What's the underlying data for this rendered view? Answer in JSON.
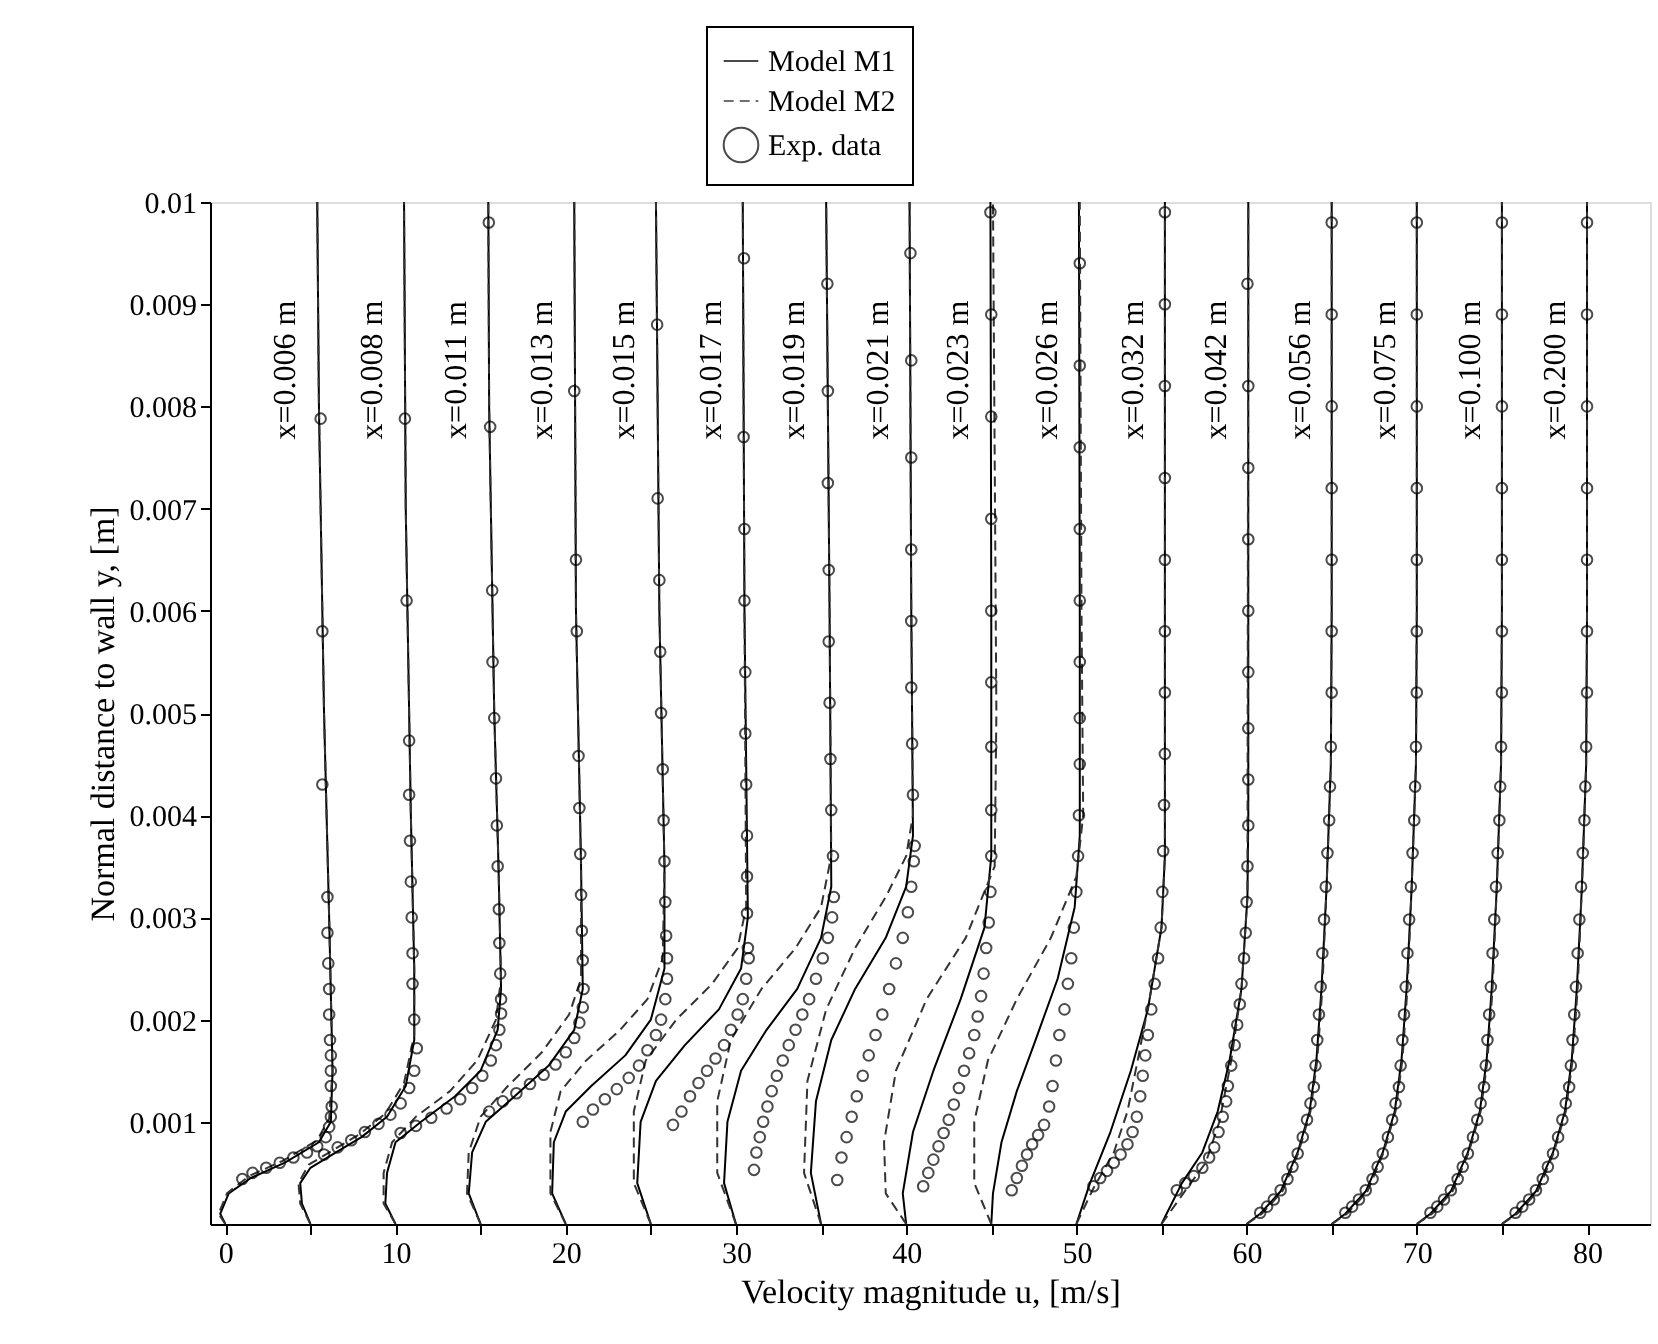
{
  "chart_data": {
    "type": "line",
    "xlabel": "Velocity magnitude u, [m/s]",
    "ylabel": "Normal distance to wall y, [m]",
    "xlim": [
      -0.9,
      83.7
    ],
    "ylim": [
      0,
      0.01
    ],
    "xticks": [
      0,
      {
        "value": 5,
        "label": null
      },
      10,
      {
        "value": 15,
        "label": null
      },
      20,
      {
        "value": 25,
        "label": null
      },
      30,
      {
        "value": 35,
        "label": null
      },
      40,
      {
        "value": 45,
        "label": null
      },
      50,
      {
        "value": 55,
        "label": null
      },
      60,
      {
        "value": 65,
        "label": null
      },
      70,
      {
        "value": 75,
        "label": null
      },
      80
    ],
    "yticks": [
      0.001,
      0.002,
      0.003,
      0.004,
      0.005,
      0.006,
      0.007,
      0.008,
      0.009,
      0.01
    ],
    "grid": false,
    "legend": "top",
    "series": [
      {
        "name": "Model M1",
        "type": "line",
        "line_style": "solid",
        "color": "#000000",
        "x": [
          0,
          -0.3,
          0.2,
          1.5,
          3.5,
          5.5,
          6.2,
          6.3,
          6.1,
          5.8,
          5.5,
          5.4,
          null,
          5,
          4.5,
          4.4,
          5,
          6.5,
          8,
          9.5,
          10.6,
          11.1,
          11.1,
          10.9,
          10.6,
          10.5,
          null,
          10,
          9.4,
          9.5,
          10,
          11.5,
          13.5,
          15,
          16,
          16.2,
          16.05,
          15.8,
          15.5,
          15.45,
          null,
          15,
          14.3,
          14.5,
          15.3,
          17,
          19,
          20.5,
          21,
          20.9,
          20.6,
          20.5,
          null,
          20,
          19.2,
          19.3,
          20,
          21.5,
          23.5,
          25,
          25.8,
          25.8,
          25.5,
          25.3,
          null,
          25,
          24.2,
          24.4,
          25.3,
          27,
          29,
          30.3,
          30.7,
          30.5,
          30.4,
          null,
          30,
          29.3,
          29.5,
          30.3,
          31.8,
          33.6,
          35,
          35.6,
          35.5,
          35.3,
          null,
          35,
          34.4,
          34.7,
          35.6,
          37,
          38.8,
          40,
          40.4,
          40.3,
          40.2,
          null,
          40,
          39.8,
          40.4,
          41.6,
          43.2,
          44.6,
          45,
          45,
          44.95,
          null,
          45,
          45.1,
          45.6,
          46.5,
          47.6,
          48.9,
          49.9,
          50.2,
          50.2,
          50.15,
          null,
          50,
          50.8,
          52,
          53.2,
          54.2,
          55,
          55.2,
          55.2,
          55.2,
          null,
          55,
          56.2,
          57.4,
          58.3,
          59,
          59.7,
          60.05,
          60.1,
          60.1,
          null,
          60,
          60.8,
          62,
          63,
          63.7,
          64.1,
          64.4,
          64.7,
          64.95,
          65,
          65,
          null,
          65,
          65.8,
          67,
          68,
          68.7,
          69.1,
          69.4,
          69.7,
          69.95,
          70,
          70,
          null,
          70,
          70.8,
          72,
          73,
          73.7,
          74.1,
          74.4,
          74.7,
          74.95,
          75,
          75,
          null,
          75,
          75.8,
          77,
          78,
          78.7,
          79.1,
          79.4,
          79.7,
          79.95,
          80,
          80
        ],
        "values": [
          0,
          0.0001,
          0.0003,
          0.00045,
          0.0006,
          0.0008,
          0.001,
          0.0015,
          0.003,
          0.005,
          0.008,
          0.01,
          null,
          0,
          0.0002,
          0.0004,
          0.00055,
          0.0007,
          0.00085,
          0.00105,
          0.00135,
          0.0018,
          0.0025,
          0.004,
          0.007,
          0.01,
          null,
          0,
          0.0002,
          0.0005,
          0.0008,
          0.001,
          0.00125,
          0.0015,
          0.0019,
          0.0023,
          0.0035,
          0.005,
          0.008,
          0.01,
          null,
          0,
          0.0003,
          0.0007,
          0.001,
          0.00125,
          0.00155,
          0.0019,
          0.0023,
          0.0035,
          0.006,
          0.01,
          null,
          0,
          0.0003,
          0.0008,
          0.0011,
          0.00135,
          0.00165,
          0.002,
          0.0025,
          0.0035,
          0.006,
          0.01,
          null,
          0,
          0.0004,
          0.001,
          0.0014,
          0.00175,
          0.0021,
          0.0025,
          0.003,
          0.006,
          0.01,
          null,
          0,
          0.0004,
          0.001,
          0.0015,
          0.0019,
          0.0023,
          0.0028,
          0.0033,
          0.006,
          0.01,
          null,
          0,
          0.0005,
          0.0012,
          0.0018,
          0.0023,
          0.0028,
          0.0033,
          0.0038,
          0.006,
          0.01,
          null,
          0,
          0.0003,
          0.0009,
          0.0015,
          0.0022,
          0.0029,
          0.0036,
          0.006,
          0.01,
          null,
          0,
          0.0003,
          0.0008,
          0.0013,
          0.0018,
          0.0024,
          0.0031,
          0.0038,
          0.006,
          0.01,
          null,
          0,
          0.0004,
          0.0009,
          0.0015,
          0.0021,
          0.0029,
          0.0036,
          0.006,
          0.01,
          null,
          0,
          0.0004,
          0.0007,
          0.0011,
          0.0016,
          0.0023,
          0.0032,
          0.004,
          0.01,
          null,
          0,
          0.0001,
          0.00032,
          0.0007,
          0.0011,
          0.0016,
          0.0023,
          0.0033,
          0.0045,
          0.006,
          0.01,
          null,
          0,
          0.0001,
          0.00032,
          0.0007,
          0.0011,
          0.0016,
          0.0023,
          0.0033,
          0.0045,
          0.006,
          0.01,
          null,
          0,
          0.0001,
          0.00032,
          0.0007,
          0.0011,
          0.0016,
          0.0023,
          0.0033,
          0.0045,
          0.006,
          0.01,
          null,
          0,
          0.0001,
          0.00032,
          0.0007,
          0.0011,
          0.0016,
          0.0023,
          0.0033,
          0.0045,
          0.006,
          0.01
        ]
      },
      {
        "name": "Model M2",
        "type": "line",
        "line_style": "dashed",
        "color": "#333333",
        "x": [
          0,
          -0.4,
          0.1,
          1.4,
          3.4,
          5.4,
          6.1,
          6.3,
          6.1,
          5.8,
          5.5,
          5.4,
          null,
          5,
          4.4,
          4.3,
          4.9,
          6.4,
          7.9,
          9.4,
          10.5,
          11.1,
          11.1,
          10.9,
          10.6,
          10.5,
          null,
          10,
          9.3,
          9.3,
          9.8,
          11.2,
          13.2,
          14.8,
          15.9,
          16.2,
          16.05,
          15.8,
          15.5,
          15.45,
          null,
          15,
          14.2,
          14.3,
          15,
          16.6,
          18.6,
          20.2,
          20.9,
          20.9,
          20.6,
          20.5,
          null,
          20,
          19.1,
          19.1,
          19.7,
          21.2,
          23.2,
          24.8,
          25.7,
          25.8,
          25.5,
          25.3,
          null,
          25,
          24,
          24,
          24.7,
          26.5,
          28.6,
          30.1,
          30.6,
          30.5,
          30.4,
          null,
          30,
          28.9,
          28.9,
          29.7,
          31.5,
          33.5,
          35,
          35.6,
          35.5,
          35.3,
          null,
          35,
          34,
          34.2,
          35.3,
          37,
          38.8,
          40,
          40.4,
          40.3,
          40.2,
          null,
          40,
          38.8,
          38.7,
          39.4,
          41.2,
          43.5,
          45.2,
          45.3,
          45.1,
          null,
          45,
          44,
          44,
          44.8,
          46.5,
          48.5,
          50,
          50.4,
          50.3,
          50.2,
          null,
          50,
          51,
          52.2,
          53,
          53.6,
          54.3,
          55,
          55.2,
          55.2,
          null,
          55,
          56.5,
          57.6,
          58.4,
          59.1,
          59.7,
          60.05,
          60.1,
          null,
          60,
          60.9,
          62.1,
          63.05,
          63.75,
          64.15,
          64.45,
          64.7,
          64.95,
          65,
          65,
          null,
          65,
          65.9,
          67.1,
          68.05,
          68.75,
          69.15,
          69.45,
          69.7,
          69.95,
          70,
          70,
          null,
          70,
          70.9,
          72.1,
          73.05,
          73.75,
          74.15,
          74.45,
          74.7,
          74.95,
          75,
          75,
          null,
          75,
          75.9,
          77.1,
          78.05,
          78.75,
          79.15,
          79.45,
          79.7,
          79.95,
          80,
          80
        ],
        "values": [
          0,
          0.0001,
          0.0003,
          0.00047,
          0.00062,
          0.00082,
          0.00103,
          0.0015,
          0.003,
          0.005,
          0.008,
          0.01,
          null,
          0,
          0.0002,
          0.0004,
          0.00058,
          0.00073,
          0.00088,
          0.00108,
          0.00138,
          0.00185,
          0.0025,
          0.004,
          0.007,
          0.01,
          null,
          0,
          0.0002,
          0.0005,
          0.0008,
          0.00105,
          0.0013,
          0.0016,
          0.002,
          0.0024,
          0.0035,
          0.005,
          0.008,
          0.01,
          null,
          0,
          0.0003,
          0.0007,
          0.00105,
          0.00135,
          0.00168,
          0.00205,
          0.0024,
          0.0035,
          0.006,
          0.01,
          null,
          0,
          0.0003,
          0.0009,
          0.0013,
          0.0016,
          0.0019,
          0.0022,
          0.0026,
          0.0035,
          0.006,
          0.01,
          null,
          0,
          0.0004,
          0.0011,
          0.0016,
          0.002,
          0.00235,
          0.0027,
          0.0031,
          0.006,
          0.01,
          null,
          0,
          0.0005,
          0.0012,
          0.0018,
          0.0023,
          0.0027,
          0.0031,
          0.0036,
          0.006,
          0.01,
          null,
          0,
          0.0005,
          0.0014,
          0.0021,
          0.0027,
          0.0032,
          0.0036,
          0.004,
          0.006,
          0.01,
          null,
          0,
          0.0003,
          0.0008,
          0.0015,
          0.0022,
          0.0028,
          0.0035,
          0.005,
          0.01,
          null,
          0,
          0.0004,
          0.001,
          0.0016,
          0.0022,
          0.0028,
          0.0034,
          0.004,
          0.006,
          0.01,
          null,
          0,
          0.00035,
          0.0007,
          0.0011,
          0.0016,
          0.0022,
          0.0029,
          0.0036,
          0.01,
          null,
          0,
          0.00035,
          0.0006,
          0.001,
          0.0016,
          0.0023,
          0.0032,
          0.01,
          null,
          0,
          0.0001,
          0.00032,
          0.0007,
          0.0011,
          0.0016,
          0.0023,
          0.0033,
          0.0045,
          0.006,
          0.01,
          null,
          0,
          0.0001,
          0.00032,
          0.0007,
          0.0011,
          0.0016,
          0.0023,
          0.0033,
          0.0045,
          0.006,
          0.01,
          null,
          0,
          0.0001,
          0.00032,
          0.0007,
          0.0011,
          0.0016,
          0.0023,
          0.0033,
          0.0045,
          0.006,
          0.01,
          null,
          0,
          0.0001,
          0.00032,
          0.0007,
          0.0011,
          0.0016,
          0.0023,
          0.0033,
          0.0045,
          0.006,
          0.01
        ]
      },
      {
        "name": "Exp. data",
        "type": "scatter",
        "marker": "circle",
        "color": "#000000",
        "x": [
          1.0,
          1.6,
          2.4,
          3.2,
          4.0,
          4.8,
          5.4,
          5.9,
          6.1,
          6.2,
          6.25,
          6.2,
          6.2,
          6.2,
          6.15,
          6.1,
          6.1,
          6.05,
          6.0,
          6.0,
          5.7,
          5.7,
          5.6,
          5.8,
          6.6,
          7.4,
          8.2,
          9.0,
          9.7,
          10.3,
          10.8,
          11.1,
          11.25,
          11.1,
          11.0,
          11.0,
          10.95,
          10.9,
          10.85,
          10.8,
          10.8,
          10.65,
          10.55,
          10.3,
          11.2,
          12.1,
          13.0,
          13.8,
          14.5,
          15.1,
          15.6,
          15.9,
          16.1,
          16.2,
          16.2,
          16.15,
          16.1,
          16.07,
          16.0,
          15.95,
          15.9,
          15.8,
          15.7,
          15.68,
          15.56,
          15.48,
          15.5,
          16.3,
          17.1,
          17.9,
          18.7,
          19.4,
          20.0,
          20.5,
          20.8,
          21.0,
          21.05,
          21.0,
          20.95,
          20.9,
          20.85,
          20.8,
          20.75,
          20.65,
          20.6,
          20.5,
          21.0,
          21.6,
          22.3,
          23.0,
          23.7,
          24.3,
          24.8,
          25.3,
          25.6,
          25.85,
          25.95,
          25.95,
          25.9,
          25.85,
          25.8,
          25.75,
          25.7,
          25.6,
          25.55,
          25.5,
          25.4,
          25.37,
          26.3,
          26.8,
          27.3,
          27.8,
          28.3,
          28.8,
          29.3,
          29.7,
          30.1,
          30.4,
          30.6,
          30.75,
          30.7,
          30.65,
          30.65,
          30.65,
          30.6,
          30.55,
          30.55,
          30.5,
          30.5,
          30.45,
          30.47,
          31.06,
          31.2,
          31.4,
          31.6,
          31.85,
          32.1,
          32.4,
          32.75,
          33.1,
          33.5,
          33.9,
          34.3,
          34.7,
          35.1,
          35.4,
          35.65,
          35.75,
          35.7,
          35.6,
          35.55,
          35.5,
          35.45,
          35.45,
          35.4,
          35.4,
          35.37,
          35.95,
          36.2,
          36.5,
          36.8,
          37.1,
          37.45,
          37.8,
          38.2,
          38.6,
          39.0,
          39.4,
          39.8,
          40.1,
          40.3,
          40.45,
          40.5,
          40.4,
          40.35,
          40.3,
          40.3,
          40.3,
          40.3,
          40.3,
          40.25,
          41.0,
          41.3,
          41.6,
          41.9,
          42.2,
          42.5,
          42.8,
          43.1,
          43.4,
          43.7,
          44.0,
          44.2,
          44.4,
          44.55,
          44.7,
          44.85,
          44.95,
          45.0,
          45.0,
          45.0,
          45.0,
          45.0,
          45.0,
          45.0,
          45.0,
          44.95,
          46.2,
          46.5,
          46.8,
          47.1,
          47.4,
          47.75,
          48.1,
          48.4,
          48.6,
          48.8,
          49.0,
          49.3,
          49.5,
          49.7,
          49.85,
          50.0,
          50.1,
          50.15,
          50.2,
          50.2,
          50.2,
          50.2,
          50.2,
          50.2,
          50.2,
          50.2,
          51.0,
          51.4,
          51.8,
          52.2,
          52.6,
          53.0,
          53.3,
          53.55,
          53.75,
          53.9,
          54.05,
          54.2,
          54.4,
          54.6,
          54.8,
          54.95,
          55.05,
          55.1,
          55.15,
          55.2,
          55.2,
          55.2,
          55.2,
          55.2,
          55.2,
          55.2,
          55.2,
          55.9,
          56.4,
          56.9,
          57.4,
          57.8,
          58.1,
          58.35,
          58.6,
          58.8,
          58.9,
          59.1,
          59.3,
          59.45,
          59.6,
          59.7,
          59.85,
          59.95,
          60.0,
          60.05,
          60.1,
          60.1,
          60.1,
          60.1,
          60.1,
          60.1,
          60.1,
          60.1,
          60.05,
          60.8,
          61.2,
          61.6,
          62,
          62.4,
          62.7,
          63,
          63.3,
          63.55,
          63.75,
          63.95,
          64.05,
          64.15,
          64.25,
          64.35,
          64.45,
          64.55,
          64.65,
          64.75,
          64.85,
          64.9,
          64.95,
          65,
          65,
          65,
          65,
          65,
          65,
          65,
          65.8,
          66.2,
          66.6,
          67,
          67.4,
          67.7,
          68,
          68.3,
          68.55,
          68.75,
          68.95,
          69.05,
          69.15,
          69.25,
          69.35,
          69.45,
          69.55,
          69.65,
          69.75,
          69.85,
          69.9,
          69.95,
          70,
          70,
          70,
          70,
          70,
          70,
          70,
          70.8,
          71.2,
          71.6,
          72,
          72.4,
          72.7,
          73,
          73.3,
          73.55,
          73.75,
          73.95,
          74.05,
          74.15,
          74.25,
          74.35,
          74.45,
          74.55,
          74.65,
          74.75,
          74.85,
          74.9,
          74.95,
          75,
          75,
          75,
          75,
          75,
          75,
          75,
          75.8,
          76.2,
          76.6,
          77,
          77.4,
          77.7,
          78,
          78.3,
          78.55,
          78.75,
          78.95,
          79.05,
          79.15,
          79.25,
          79.35,
          79.45,
          79.55,
          79.65,
          79.75,
          79.85,
          79.9,
          79.95,
          80,
          80,
          80,
          80,
          80,
          80,
          80
        ],
        "values": [
          0.00044,
          0.0005,
          0.00055,
          0.0006,
          0.00065,
          0.0007,
          0.00076,
          0.00085,
          0.00095,
          0.00105,
          0.00115,
          0.00135,
          0.0015,
          0.00165,
          0.0018,
          0.00205,
          0.0023,
          0.00255,
          0.00285,
          0.0032,
          0.0043,
          0.0058,
          0.00788,
          0.00068,
          0.00075,
          0.00082,
          0.0009,
          0.00098,
          0.00107,
          0.00118,
          0.00133,
          0.0015,
          0.00172,
          0.002,
          0.00235,
          0.00265,
          0.003,
          0.00335,
          0.00375,
          0.0042,
          0.00473,
          0.0061,
          0.00788,
          0.00089,
          0.00096,
          0.00104,
          0.00113,
          0.00122,
          0.00133,
          0.00145,
          0.0016,
          0.00175,
          0.0019,
          0.00206,
          0.0022,
          0.00245,
          0.00275,
          0.00308,
          0.0035,
          0.0039,
          0.00436,
          0.00495,
          0.0055,
          0.0062,
          0.0078,
          0.0098,
          0.0011,
          0.0012,
          0.00128,
          0.00137,
          0.00146,
          0.00156,
          0.00168,
          0.00182,
          0.00197,
          0.00212,
          0.0023,
          0.00258,
          0.00287,
          0.00322,
          0.00362,
          0.00407,
          0.00458,
          0.0058,
          0.0065,
          0.00815,
          0.001,
          0.00112,
          0.00122,
          0.00132,
          0.00143,
          0.00155,
          0.0017,
          0.00185,
          0.002,
          0.0022,
          0.0024,
          0.0026,
          0.00282,
          0.00315,
          0.00355,
          0.00395,
          0.00445,
          0.005,
          0.0056,
          0.0063,
          0.0071,
          0.0088,
          0.00097,
          0.0011,
          0.00125,
          0.00138,
          0.0015,
          0.00162,
          0.00175,
          0.0019,
          0.00205,
          0.0022,
          0.0024,
          0.0026,
          0.0027,
          0.00304,
          0.0034,
          0.0038,
          0.0043,
          0.0048,
          0.0054,
          0.0061,
          0.0068,
          0.0077,
          0.00945,
          0.00053,
          0.0007,
          0.00085,
          0.001,
          0.00115,
          0.0013,
          0.00145,
          0.0016,
          0.00175,
          0.0019,
          0.00205,
          0.0022,
          0.0024,
          0.0026,
          0.0028,
          0.003,
          0.0032,
          0.0036,
          0.00405,
          0.00455,
          0.0051,
          0.0057,
          0.0064,
          0.00725,
          0.00815,
          0.0092,
          0.00043,
          0.00065,
          0.00085,
          0.00105,
          0.00125,
          0.00145,
          0.00165,
          0.00185,
          0.00205,
          0.0023,
          0.00255,
          0.0028,
          0.00305,
          0.0033,
          0.00355,
          0.0037,
          0.0042,
          0.0047,
          0.00525,
          0.0059,
          0.0066,
          0.0075,
          0.00845,
          0.0095,
          0.00037,
          0.0005,
          0.00063,
          0.00076,
          0.00089,
          0.00102,
          0.00117,
          0.00133,
          0.0015,
          0.00167,
          0.00185,
          0.00203,
          0.00223,
          0.00245,
          0.0027,
          0.00295,
          0.00325,
          0.0036,
          0.00405,
          0.00467,
          0.0053,
          0.006,
          0.0069,
          0.0079,
          0.0089,
          0.0099,
          0.00033,
          0.00045,
          0.00057,
          0.00068,
          0.00078,
          0.00087,
          0.00097,
          0.00115,
          0.00135,
          0.0016,
          0.00185,
          0.0021,
          0.00235,
          0.0026,
          0.0029,
          0.00325,
          0.0036,
          0.004,
          0.0045,
          0.00495,
          0.0055,
          0.0061,
          0.0068,
          0.0076,
          0.0084,
          0.0094,
          0.00037,
          0.00045,
          0.00052,
          0.0006,
          0.00068,
          0.00078,
          0.0009,
          0.00105,
          0.00125,
          0.00145,
          0.00165,
          0.00185,
          0.0021,
          0.00235,
          0.0026,
          0.0029,
          0.00325,
          0.00365,
          0.0041,
          0.0046,
          0.0052,
          0.0058,
          0.0065,
          0.0073,
          0.0082,
          0.009,
          0.0099,
          0.00033,
          0.0004,
          0.00047,
          0.00055,
          0.00065,
          0.00075,
          0.0009,
          0.00105,
          0.0012,
          0.00135,
          0.00155,
          0.00175,
          0.00195,
          0.00215,
          0.00235,
          0.0026,
          0.00285,
          0.00315,
          0.0035,
          0.0039,
          0.00435,
          0.00485,
          0.0054,
          0.006,
          0.0067,
          0.0074,
          0.0082,
          0.0092,
          0.00011,
          0.00017,
          0.00024,
          0.00033,
          0.00044,
          0.00056,
          0.00069,
          0.00085,
          0.00102,
          0.00118,
          0.00134,
          0.00155,
          0.0018,
          0.00205,
          0.00232,
          0.00265,
          0.00298,
          0.0033,
          0.00363,
          0.00395,
          0.00428,
          0.00467,
          0.0052,
          0.0058,
          0.0065,
          0.0072,
          0.008,
          0.0089,
          0.0098,
          0.00011,
          0.00017,
          0.00024,
          0.00033,
          0.00044,
          0.00056,
          0.00069,
          0.00085,
          0.00102,
          0.00118,
          0.00134,
          0.00155,
          0.0018,
          0.00205,
          0.00232,
          0.00265,
          0.00298,
          0.0033,
          0.00363,
          0.00395,
          0.00428,
          0.00467,
          0.0052,
          0.0058,
          0.0065,
          0.0072,
          0.008,
          0.0089,
          0.0098,
          0.00011,
          0.00017,
          0.00024,
          0.00033,
          0.00044,
          0.00056,
          0.00069,
          0.00085,
          0.00102,
          0.00118,
          0.00134,
          0.00155,
          0.0018,
          0.00205,
          0.00232,
          0.00265,
          0.00298,
          0.0033,
          0.00363,
          0.00395,
          0.00428,
          0.00467,
          0.0052,
          0.0058,
          0.0065,
          0.0072,
          0.008,
          0.0089,
          0.0098,
          0.00011,
          0.00017,
          0.00024,
          0.00033,
          0.00044,
          0.00056,
          0.00069,
          0.00085,
          0.00102,
          0.00118,
          0.00134,
          0.00155,
          0.0018,
          0.00205,
          0.00232,
          0.00265,
          0.00298,
          0.0033,
          0.00363,
          0.00395,
          0.00428,
          0.00467,
          0.0052,
          0.0058,
          0.0065,
          0.0072,
          0.008,
          0.0089,
          0.0098
        ]
      }
    ],
    "annotations": [
      "x=0.006 m",
      "x=0.008 m",
      "x=0.011 m",
      "x=0.013 m",
      "x=0.015 m",
      "x=0.017 m",
      "x=0.019 m",
      "x=0.021 m",
      "x=0.023 m",
      "x=0.026 m",
      "x=0.032 m",
      "x=0.042 m",
      "x=0.056 m",
      "x=0.075 m",
      "x=0.100 m",
      "x=0.200 m"
    ]
  }
}
